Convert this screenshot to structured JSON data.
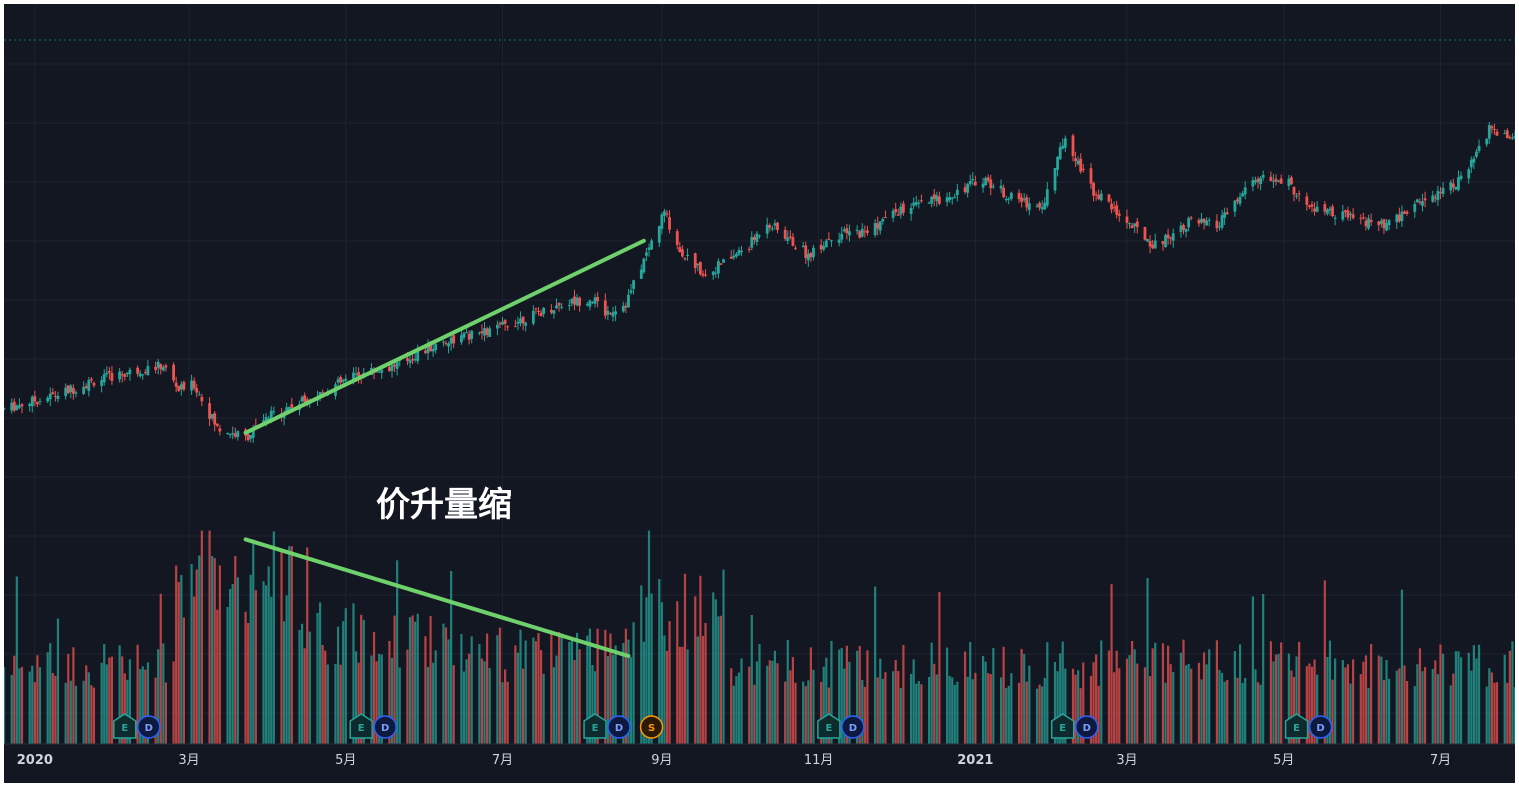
{
  "chart_data": {
    "type": "candlestick",
    "price_panel": {
      "y_range_estimated": [
        80,
        180
      ],
      "grid": true,
      "ohlc": []
    },
    "volume_panel": {
      "y_range_estimated": [
        0,
        100
      ],
      "grid": false,
      "values": []
    },
    "x_axis": {
      "labels": [
        {
          "x": "2020-01",
          "label": "2020",
          "bold": true
        },
        {
          "x": "2020-03",
          "label": "3月"
        },
        {
          "x": "2020-05",
          "label": "5月"
        },
        {
          "x": "2020-07",
          "label": "7月"
        },
        {
          "x": "2020-09",
          "label": "9月"
        },
        {
          "x": "2020-11",
          "label": "11月"
        },
        {
          "x": "2021-01",
          "label": "2021",
          "bold": true
        },
        {
          "x": "2021-03",
          "label": "3月"
        },
        {
          "x": "2021-05",
          "label": "5月"
        },
        {
          "x": "2021-07",
          "label": "7月"
        }
      ]
    },
    "annotations": [
      {
        "type": "text",
        "text": "价升量缩",
        "color": "#ffffff"
      },
      {
        "type": "trendline",
        "panel": "price",
        "from": [
          "2020-03-23",
          99
        ],
        "to": [
          "2020-08-25",
          139
        ],
        "color": "#6fd16c"
      },
      {
        "type": "trendline",
        "panel": "volume",
        "from": [
          "2020-03-23",
          93
        ],
        "to": [
          "2020-08-19",
          40
        ],
        "color": "#6fd16c"
      }
    ],
    "event_markers": [
      {
        "x": "2020-02-05",
        "letters": [
          "E",
          "D"
        ]
      },
      {
        "x": "2020-05-07",
        "letters": [
          "E",
          "D"
        ]
      },
      {
        "x": "2020-08-06",
        "letters": [
          "E",
          "D"
        ]
      },
      {
        "x": "2020-08-28",
        "letters": [
          "S"
        ]
      },
      {
        "x": "2020-11-05",
        "letters": [
          "E",
          "D"
        ]
      },
      {
        "x": "2021-02-04",
        "letters": [
          "E",
          "D"
        ]
      },
      {
        "x": "2021-05-06",
        "letters": [
          "E",
          "D"
        ]
      }
    ],
    "colors": {
      "background": "#131722",
      "up": "#26a69a",
      "down": "#ef5350",
      "grid": "#1f2330",
      "trendline": "#6fd16c",
      "axis_text": "#d1d4dc",
      "annotation": "#ffffff",
      "marker_E": "#26a69a",
      "marker_D": "#2962ff",
      "marker_S": "#ff9800"
    }
  }
}
